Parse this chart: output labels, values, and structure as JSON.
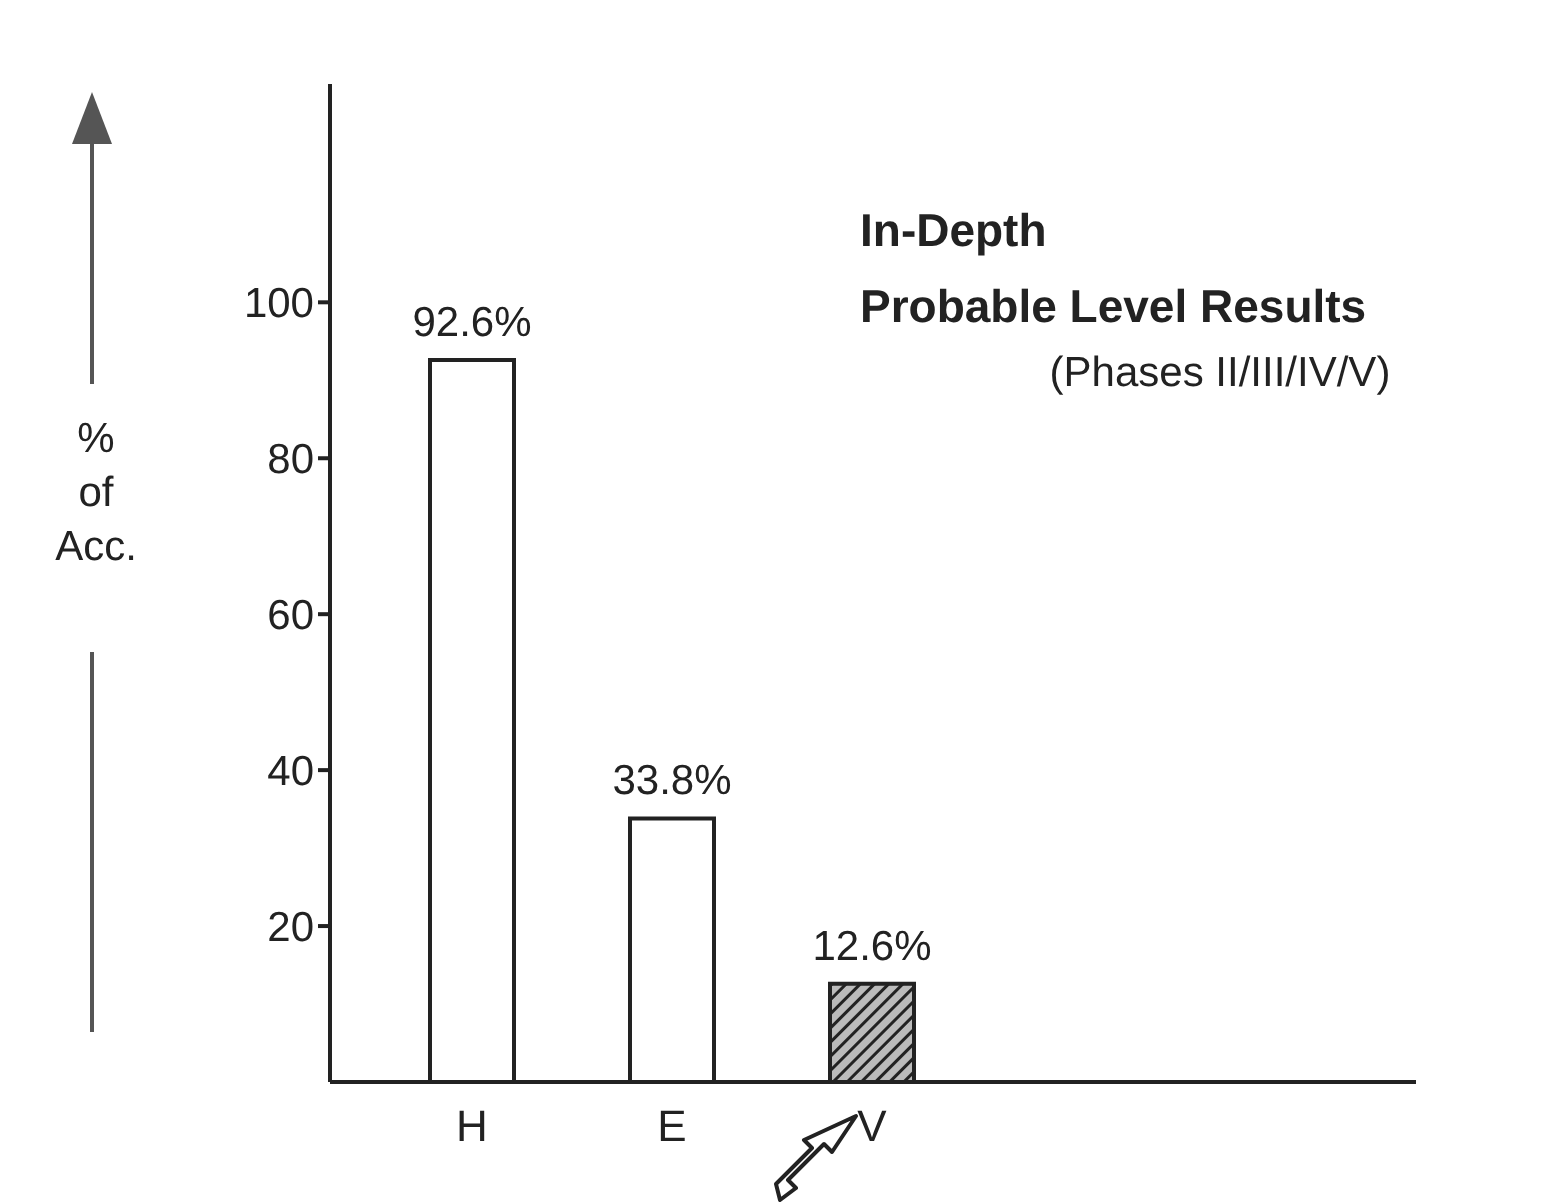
{
  "chart_data": {
    "type": "bar",
    "title": "In-Depth Probable Level Results",
    "subtitle": "(Phases II/III/IV/V)",
    "ylabel": "% of Acc.",
    "categories": [
      "H",
      "E",
      "V"
    ],
    "values": [
      92.6,
      33.8,
      12.6
    ],
    "colors": [
      "#ffffff",
      "#ffffff",
      "#222222"
    ],
    "value_labels": [
      "92.6%",
      "33.8%",
      "12.6%"
    ],
    "ylim": [
      0,
      128
    ],
    "yticks": [
      20,
      40,
      60,
      80,
      100
    ]
  }
}
